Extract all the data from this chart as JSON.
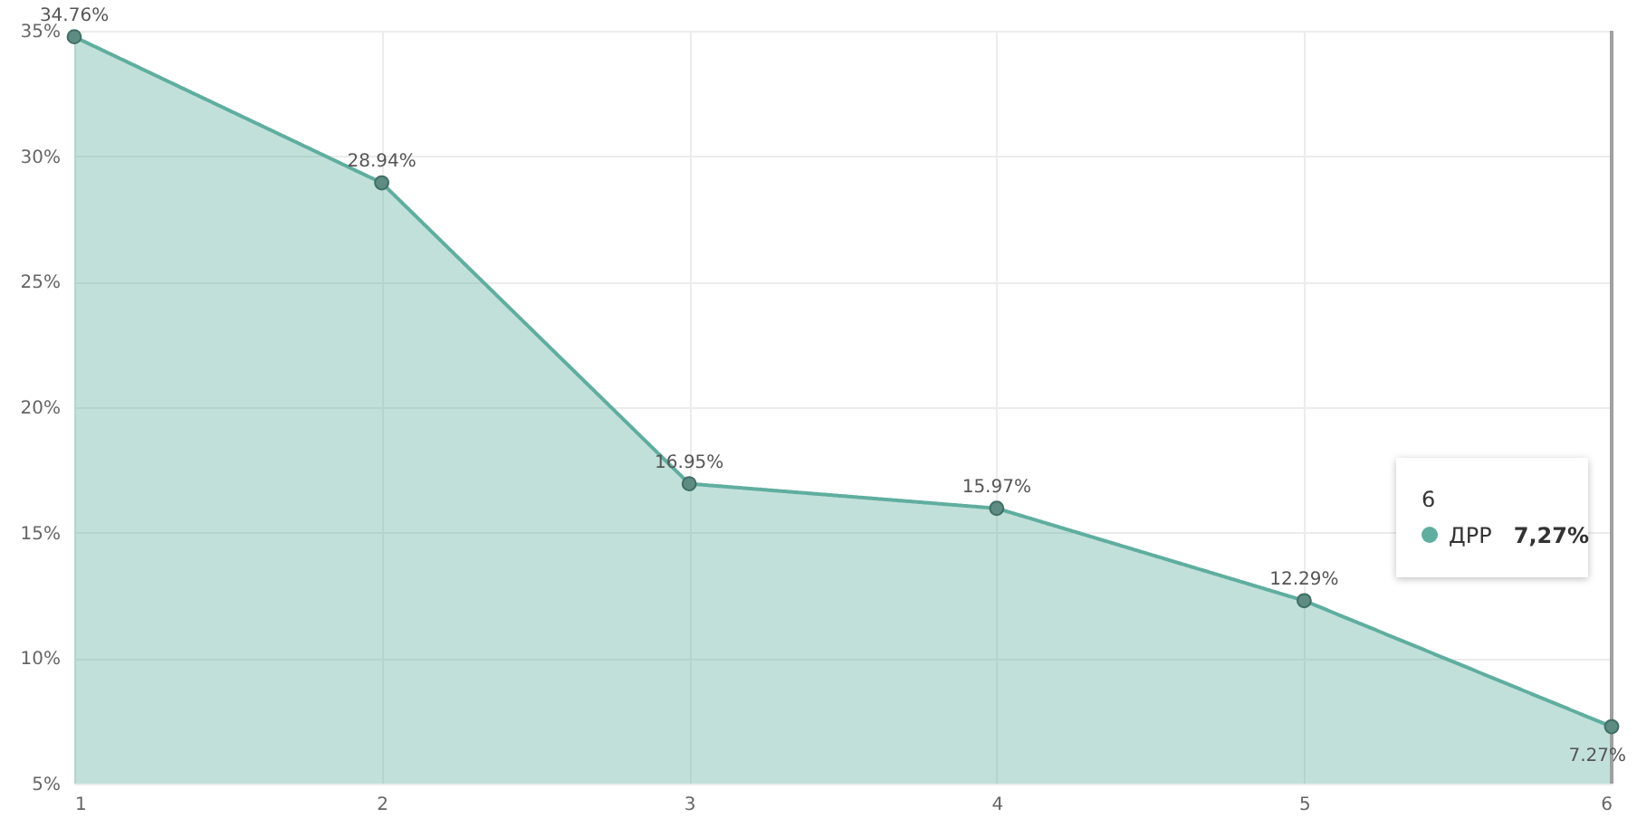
{
  "chart_data": {
    "type": "area",
    "x": [
      1,
      2,
      3,
      4,
      5,
      6
    ],
    "xlim": [
      1,
      6
    ],
    "xticks": [
      1,
      2,
      3,
      4,
      5,
      6
    ],
    "ylim": [
      5,
      35
    ],
    "yticks": [
      {
        "value": 5,
        "label": "5%"
      },
      {
        "value": 10,
        "label": "10%"
      },
      {
        "value": 15,
        "label": "15%"
      },
      {
        "value": 20,
        "label": "20%"
      },
      {
        "value": 25,
        "label": "25%"
      },
      {
        "value": 30,
        "label": "30%"
      },
      {
        "value": 35,
        "label": "35%"
      }
    ],
    "series": [
      {
        "name": "ДРР",
        "color": "#5fae9f",
        "values": [
          34.76,
          28.94,
          16.95,
          15.97,
          12.29,
          7.27
        ],
        "value_labels": [
          "34.76%",
          "28.94%",
          "16.95%",
          "15.97%",
          "12.29%",
          "7.27%"
        ]
      }
    ],
    "marker": "circle",
    "grid": true,
    "legend": "right",
    "ref_lines": [
      {
        "axis": "x",
        "value": 6,
        "color": "#a0a0a0"
      }
    ],
    "annotations": [
      "6",
      "7,27%"
    ]
  }
}
